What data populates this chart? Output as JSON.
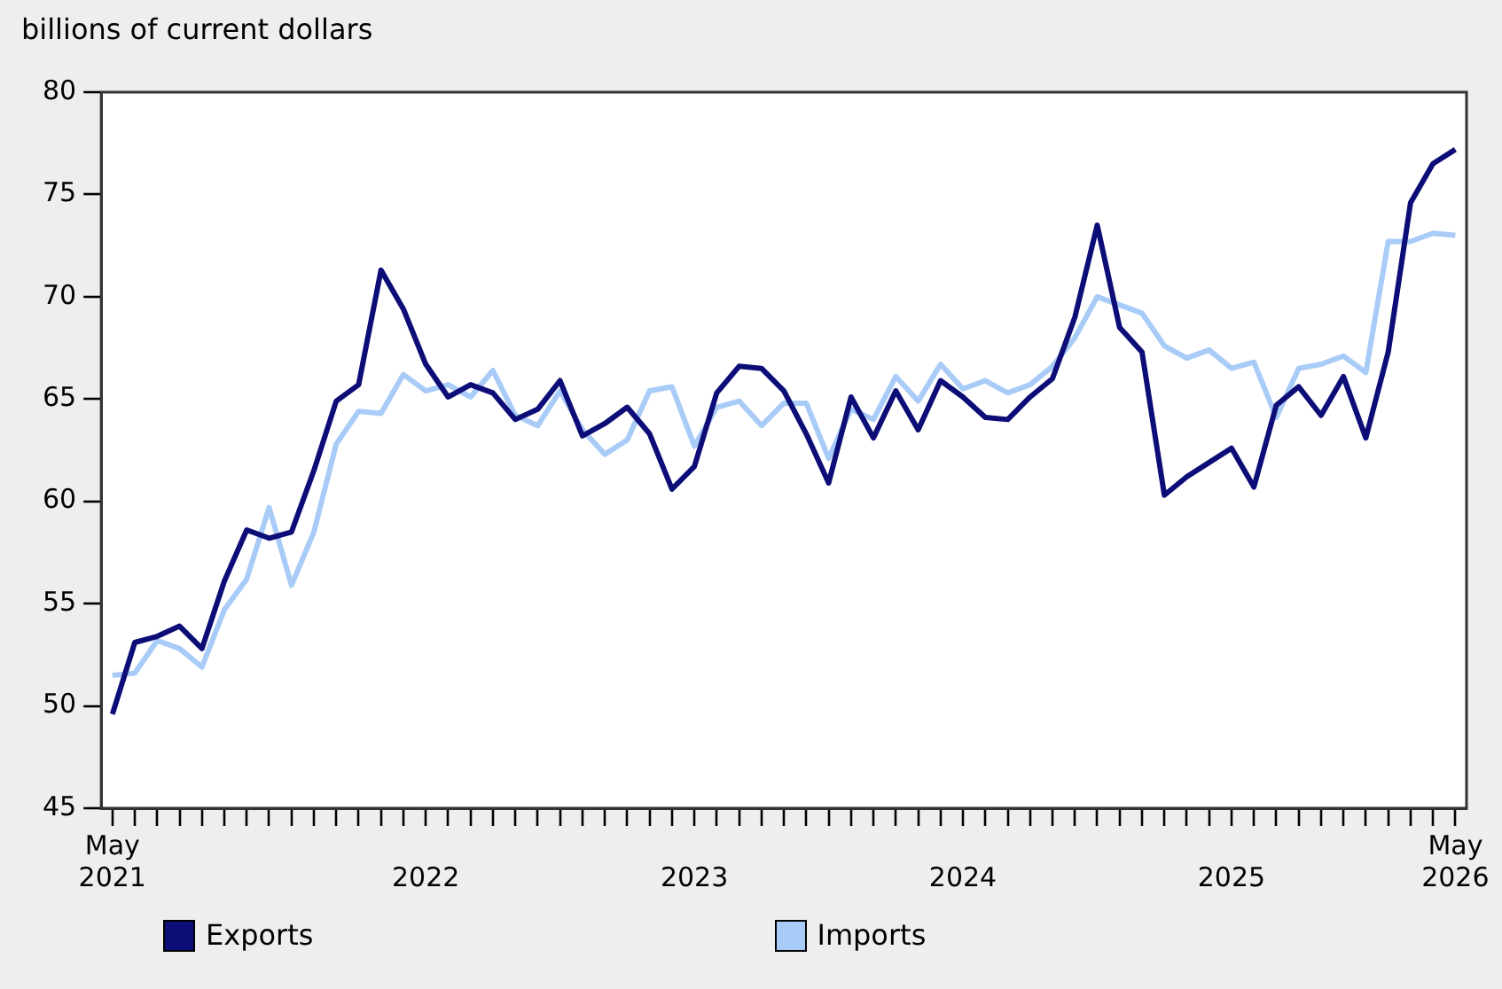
{
  "chart_data": {
    "type": "line",
    "ylabel": "billions of current dollars",
    "categories": [
      "May 2021",
      null,
      null,
      null,
      null,
      null,
      null,
      null,
      null,
      null,
      null,
      null,
      null,
      null,
      "2022",
      null,
      null,
      null,
      null,
      null,
      null,
      null,
      null,
      null,
      null,
      null,
      "2023",
      null,
      null,
      null,
      null,
      null,
      null,
      null,
      null,
      null,
      null,
      null,
      "2024",
      null,
      null,
      null,
      null,
      null,
      null,
      null,
      null,
      null,
      null,
      null,
      "2025",
      null,
      null,
      null,
      null,
      null,
      null,
      null,
      null,
      null,
      "May 2026"
    ],
    "series": [
      {
        "name": "Exports",
        "color": "#0d0d78",
        "values": [
          49.6,
          53.1,
          53.4,
          53.9,
          52.8,
          56.1,
          58.6,
          58.2,
          58.5,
          61.5,
          64.9,
          65.7,
          71.3,
          69.4,
          66.7,
          65.1,
          65.7,
          65.3,
          64.0,
          64.5,
          65.9,
          63.2,
          63.8,
          64.6,
          63.3,
          60.6,
          61.7,
          65.3,
          66.6,
          66.5,
          65.4,
          63.3,
          60.9,
          65.1,
          63.1,
          65.4,
          63.5,
          65.9,
          65.1,
          64.1,
          64.0,
          65.1,
          66.0,
          69.0,
          73.5,
          68.5,
          67.3,
          60.3,
          61.2,
          61.9,
          62.6,
          60.7,
          64.7,
          65.6,
          64.2,
          66.1,
          63.1,
          67.3,
          74.6,
          76.5,
          77.2
        ]
      },
      {
        "name": "Imports",
        "color": "#a8cbf7",
        "values": [
          51.5,
          51.6,
          53.2,
          52.8,
          51.9,
          54.7,
          56.2,
          59.7,
          55.9,
          58.5,
          62.8,
          64.4,
          64.3,
          66.2,
          65.4,
          65.7,
          65.1,
          66.4,
          64.2,
          63.7,
          65.4,
          63.5,
          62.3,
          63.0,
          65.4,
          65.6,
          62.7,
          64.6,
          64.9,
          63.7,
          64.8,
          64.8,
          62.1,
          64.5,
          64.0,
          66.1,
          64.9,
          66.7,
          65.5,
          65.9,
          65.3,
          65.7,
          66.6,
          68.0,
          70.0,
          69.6,
          69.2,
          67.6,
          67.0,
          67.4,
          66.5,
          66.8,
          64.1,
          66.5,
          66.7,
          67.1,
          66.3,
          72.7,
          72.7,
          73.1,
          73.0
        ]
      }
    ],
    "ylim": [
      45,
      80
    ],
    "yticks": [
      45,
      50,
      55,
      60,
      65,
      70,
      75,
      80
    ],
    "grid": false,
    "legend": "bottom",
    "marker": "none",
    "line_style": "solid"
  }
}
